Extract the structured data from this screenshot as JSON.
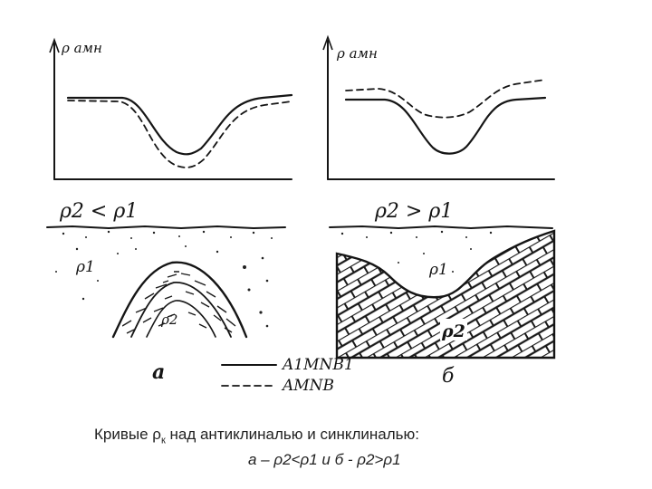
{
  "panel_a": {
    "axis_label": "ρ амн",
    "condition": "ρ2 < ρ1",
    "upper_layer": "ρ1",
    "lower_layer": "ρ2",
    "panel_letter": "а"
  },
  "panel_b": {
    "axis_label": "ρ амн",
    "condition": "ρ2 > ρ1",
    "upper_layer": "ρ1",
    "lower_layer": "ρ2",
    "panel_letter": "б"
  },
  "legend": {
    "solid_label": "A1MNB1",
    "dashed_label": "AMNB"
  },
  "caption": {
    "line1_prefix": "Кривые ρ",
    "line1_sub": "к",
    "line1_suffix": " над антиклиналью и синклиналью:",
    "line2": "а – ρ2<ρ1  и   б - ρ2>ρ1"
  }
}
